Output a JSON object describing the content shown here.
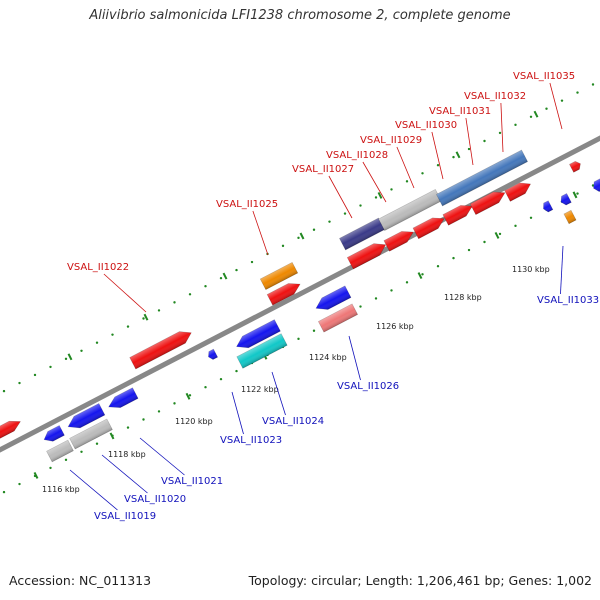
{
  "title": "Aliivibrio salmonicida LFI1238 chromosome 2, complete genome",
  "footer": {
    "accession": "Accession: NC_011313",
    "topology": "Topology: circular; Length: 1,206,461 bp; Genes: 1,002"
  },
  "colors": {
    "forward_label": "#cc1111",
    "reverse_label": "#1111bb",
    "backbone": "#888888",
    "tick_mark": "#228822",
    "gene_red": "#ee1111",
    "gene_blue": "#1515ee",
    "gene_orange": "#ee8800",
    "gene_gray": "#bbbbbb",
    "gene_cyan": "#11c8c8",
    "gene_pink": "#ee7777",
    "gene_navy": "#3a3a88",
    "gene_steel": "#4477bb"
  },
  "tick_labels": [
    "1116 kbp",
    "1118 kbp",
    "1120 kbp",
    "1122 kbp",
    "1124 kbp",
    "1126 kbp",
    "1128 kbp",
    "1130 kbp"
  ],
  "forward_labels": [
    "VSAL_II1022",
    "VSAL_II1025",
    "VSAL_II1027",
    "VSAL_II1028",
    "VSAL_II1029",
    "VSAL_II1030",
    "VSAL_II1031",
    "VSAL_II1032",
    "VSAL_II1035"
  ],
  "reverse_labels": [
    "VSAL_II1019",
    "VSAL_II1020",
    "VSAL_II1021",
    "VSAL_II1023",
    "VSAL_II1024",
    "VSAL_II1026",
    "VSAL_II1033"
  ]
}
